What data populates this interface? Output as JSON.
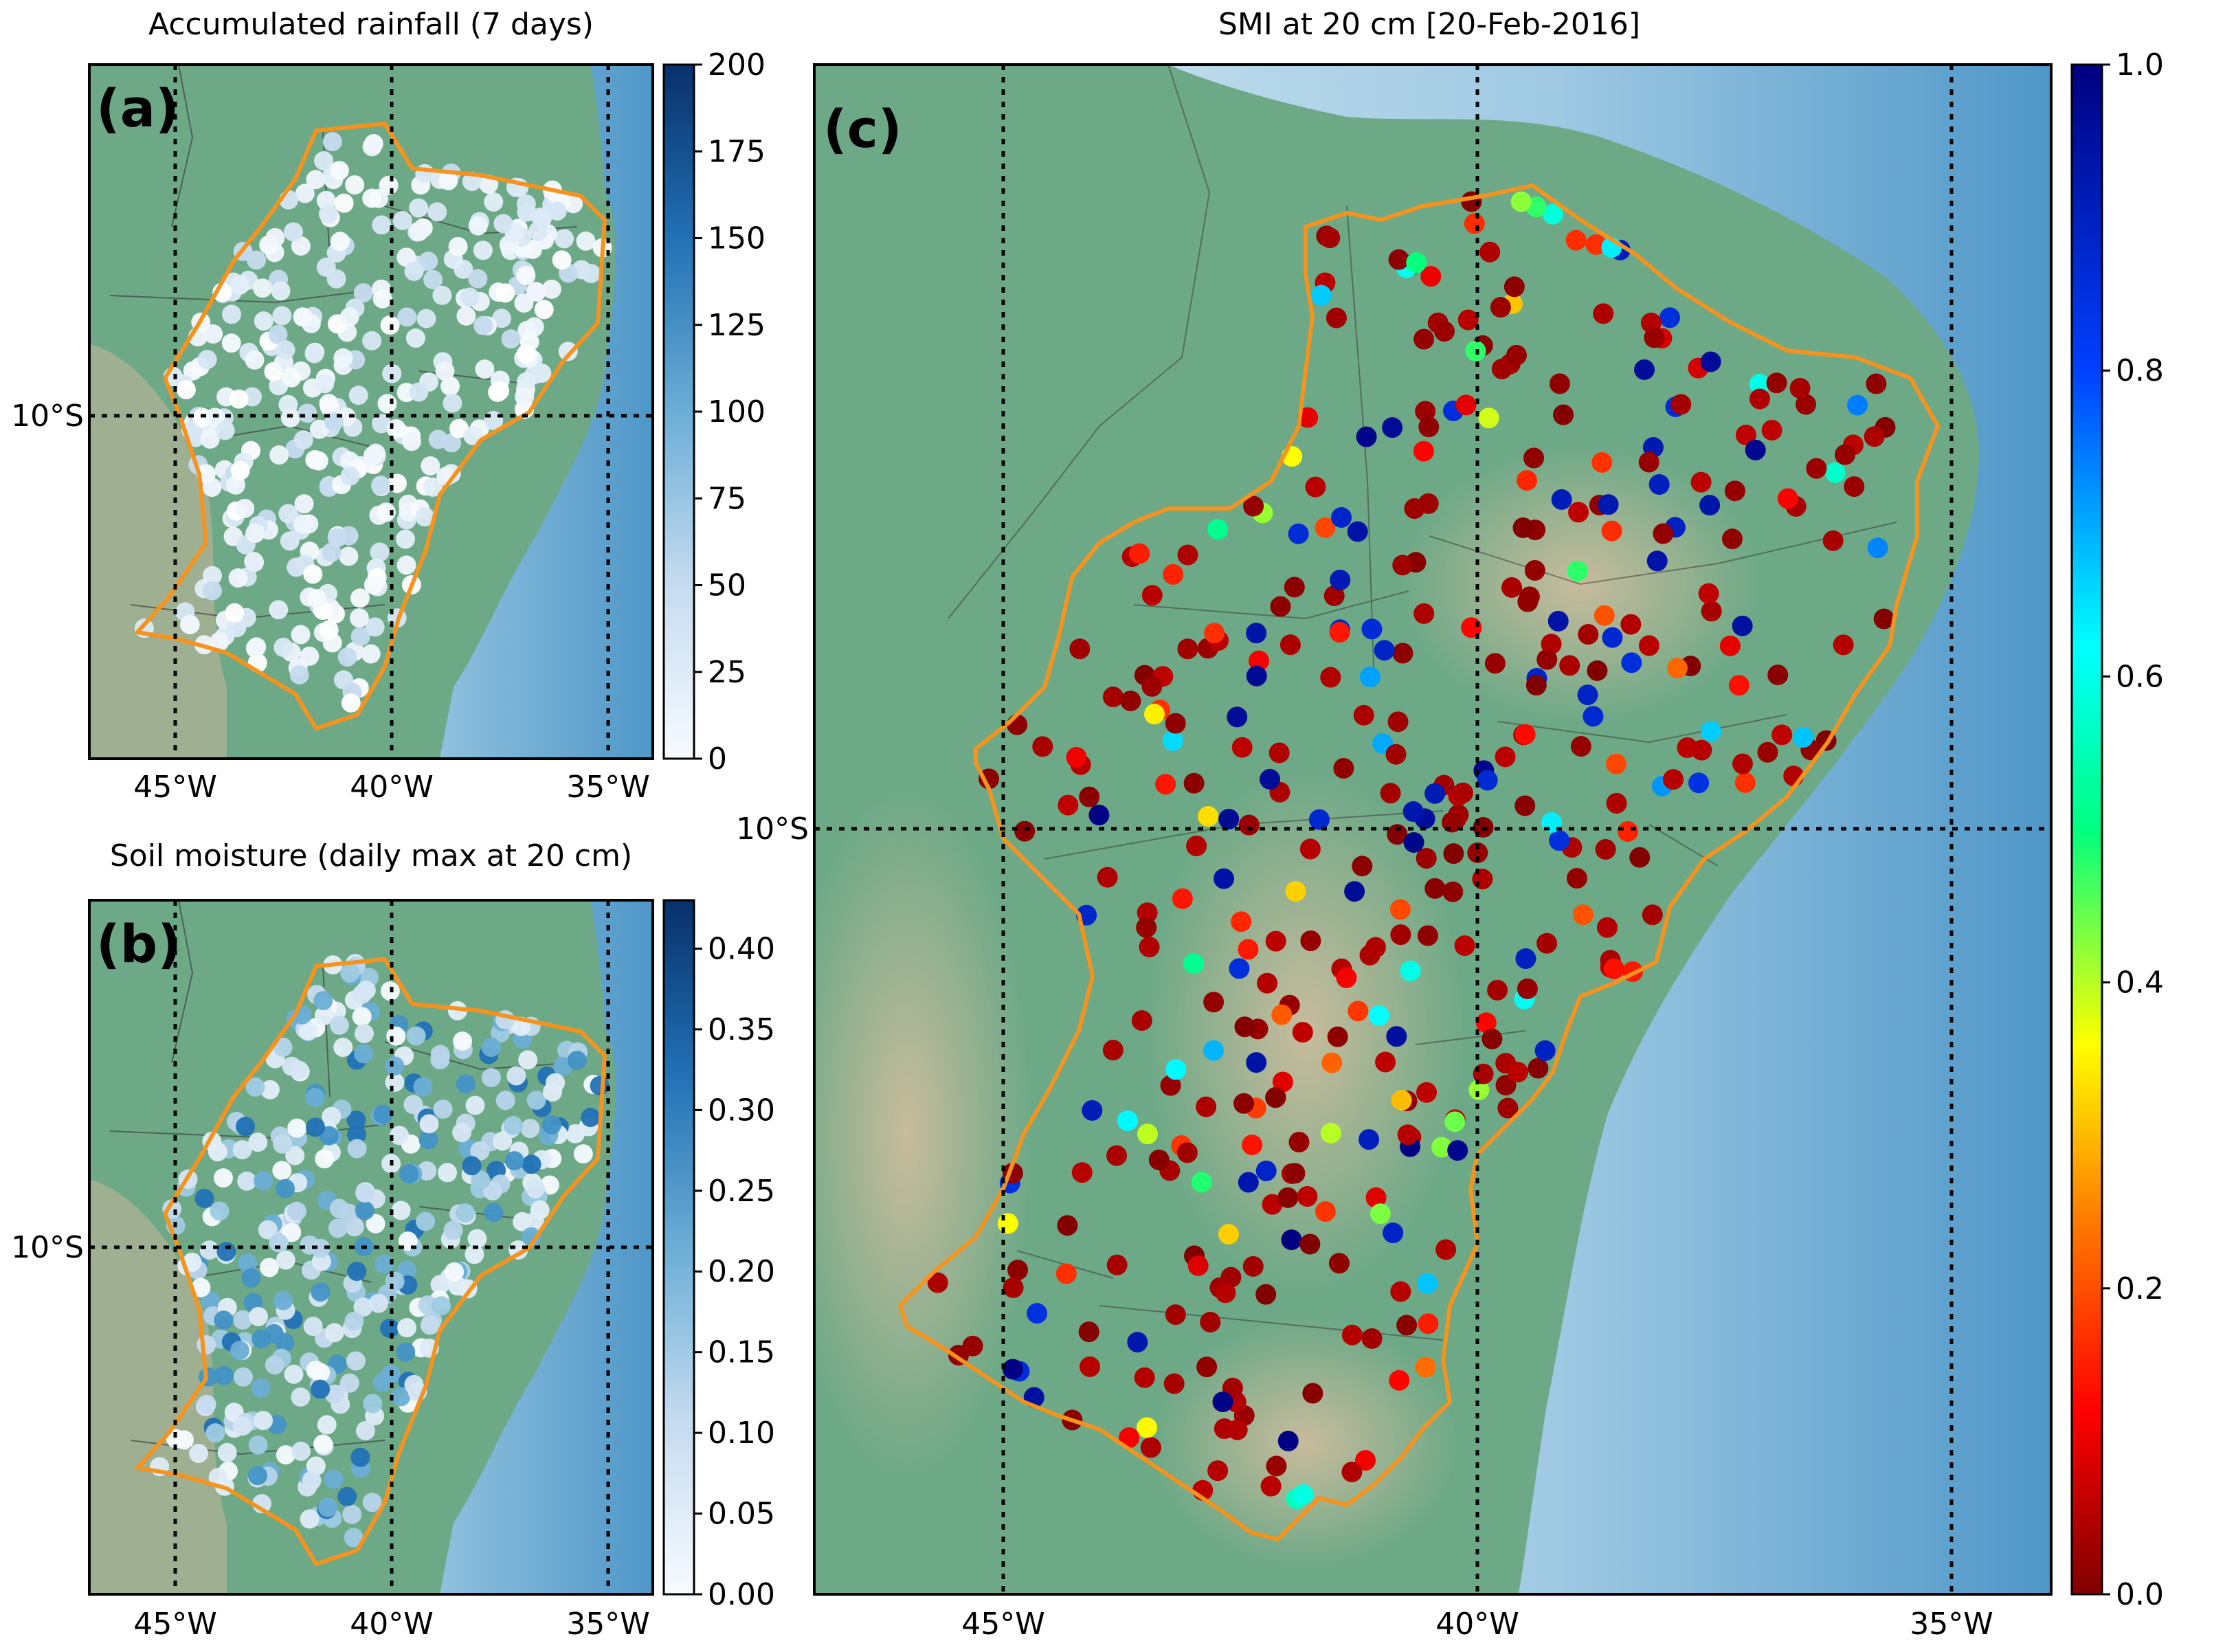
{
  "panels": {
    "a": {
      "letter": "(a)",
      "title": "Accumulated rainfall (7 days)",
      "lat_label": "10°S",
      "lon_labels": [
        "45°W",
        "40°W",
        "35°W"
      ],
      "colorbar_ticks": [
        "0",
        "25",
        "50",
        "75",
        "100",
        "125",
        "150",
        "175",
        "200"
      ],
      "colorbar_range": [
        0,
        200
      ]
    },
    "b": {
      "letter": "(b)",
      "title": "Soil moisture (daily max at 20 cm)",
      "lat_label": "10°S",
      "lon_labels": [
        "45°W",
        "40°W",
        "35°W"
      ],
      "colorbar_ticks": [
        "0.00",
        "0.05",
        "0.10",
        "0.15",
        "0.20",
        "0.25",
        "0.30",
        "0.35",
        "0.40"
      ],
      "colorbar_range": [
        0,
        0.43
      ]
    },
    "c": {
      "letter": "(c)",
      "title": "SMI at 20 cm [20-Feb-2016]",
      "lat_label": "10°S",
      "lon_labels": [
        "45°W",
        "40°W",
        "35°W"
      ],
      "colorbar_ticks": [
        "0.0",
        "0.2",
        "0.4",
        "0.6",
        "0.8",
        "1.0"
      ],
      "colorbar_range": [
        0,
        1
      ],
      "colormap": "jet-like (dark red → red → orange → yellow → green → cyan → blue → dark blue)"
    }
  },
  "colors": {
    "outline": "#f5931e",
    "gridline": "#000000",
    "ocean": "#5ba3d0",
    "land": "#6ba57e",
    "blues_low": "#f7fbff",
    "blues_high": "#08306b"
  }
}
